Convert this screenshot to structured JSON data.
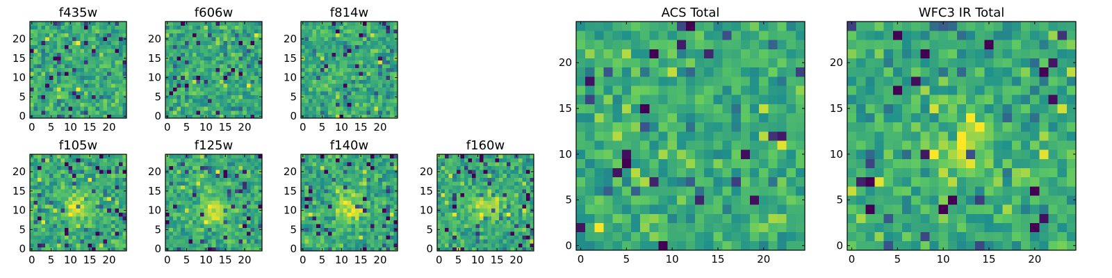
{
  "figure": {
    "colormap": "viridis",
    "colormap_stops": [
      "#440154",
      "#3b528b",
      "#21918c",
      "#5ec962",
      "#fde725"
    ],
    "axis_color": "#000000"
  },
  "chart_data": [
    {
      "type": "heatmap",
      "title": "f435w",
      "grid_size": [
        25,
        25
      ],
      "x_ticks": [
        0,
        5,
        10,
        15,
        20
      ],
      "y_ticks": [
        0,
        5,
        10,
        15,
        20
      ],
      "xlim": [
        -0.5,
        24.5
      ],
      "ylim": [
        -0.5,
        24.5
      ],
      "pattern": "noise",
      "seed": 11
    },
    {
      "type": "heatmap",
      "title": "f606w",
      "grid_size": [
        25,
        25
      ],
      "x_ticks": [
        0,
        5,
        10,
        15,
        20
      ],
      "y_ticks": [
        0,
        5,
        10,
        15,
        20
      ],
      "xlim": [
        -0.5,
        24.5
      ],
      "ylim": [
        -0.5,
        24.5
      ],
      "pattern": "noise",
      "seed": 23
    },
    {
      "type": "heatmap",
      "title": "f814w",
      "grid_size": [
        25,
        25
      ],
      "x_ticks": [
        0,
        5,
        10,
        15,
        20
      ],
      "y_ticks": [
        0,
        5,
        10,
        15,
        20
      ],
      "xlim": [
        -0.5,
        24.5
      ],
      "ylim": [
        -0.5,
        24.5
      ],
      "pattern": "noise",
      "seed": 37
    },
    {
      "type": "heatmap",
      "title": "f105w",
      "grid_size": [
        25,
        25
      ],
      "x_ticks": [
        0,
        5,
        10,
        15,
        20
      ],
      "y_ticks": [
        0,
        5,
        10,
        15,
        20
      ],
      "xlim": [
        -0.5,
        24.5
      ],
      "ylim": [
        -0.5,
        24.5
      ],
      "pattern": "central-source",
      "source_center": [
        12,
        11
      ],
      "seed": 41
    },
    {
      "type": "heatmap",
      "title": "f125w",
      "grid_size": [
        25,
        25
      ],
      "x_ticks": [
        0,
        5,
        10,
        15,
        20
      ],
      "y_ticks": [
        0,
        5,
        10,
        15,
        20
      ],
      "xlim": [
        -0.5,
        24.5
      ],
      "ylim": [
        -0.5,
        24.5
      ],
      "pattern": "central-source",
      "source_center": [
        12,
        10
      ],
      "seed": 53
    },
    {
      "type": "heatmap",
      "title": "f140w",
      "grid_size": [
        25,
        25
      ],
      "x_ticks": [
        0,
        5,
        10,
        15,
        20
      ],
      "y_ticks": [
        0,
        5,
        10,
        15,
        20
      ],
      "xlim": [
        -0.5,
        24.5
      ],
      "ylim": [
        -0.5,
        24.5
      ],
      "pattern": "central-source",
      "source_center": [
        12,
        11
      ],
      "seed": 67
    },
    {
      "type": "heatmap",
      "title": "f160w",
      "grid_size": [
        25,
        25
      ],
      "x_ticks": [
        0,
        5,
        10,
        15,
        20
      ],
      "y_ticks": [
        0,
        5,
        10,
        15,
        20
      ],
      "xlim": [
        -0.5,
        24.5
      ],
      "ylim": [
        -0.5,
        24.5
      ],
      "pattern": "central-source",
      "source_center": [
        12,
        11
      ],
      "seed": 79
    },
    {
      "type": "heatmap",
      "title": "ACS Total",
      "grid_size": [
        25,
        25
      ],
      "x_ticks": [
        0,
        5,
        10,
        15,
        20
      ],
      "y_ticks": [
        0,
        5,
        10,
        15,
        20
      ],
      "xlim": [
        -0.5,
        24.5
      ],
      "ylim": [
        -0.5,
        24.5
      ],
      "pattern": "noise",
      "seed": 97
    },
    {
      "type": "heatmap",
      "title": "WFC3 IR Total",
      "grid_size": [
        25,
        25
      ],
      "x_ticks": [
        0,
        5,
        10,
        15,
        20
      ],
      "y_ticks": [
        0,
        5,
        10,
        15,
        20
      ],
      "xlim": [
        -0.5,
        24.5
      ],
      "ylim": [
        -0.5,
        24.5
      ],
      "pattern": "central-source",
      "source_center": [
        12,
        11
      ],
      "seed": 101
    }
  ]
}
